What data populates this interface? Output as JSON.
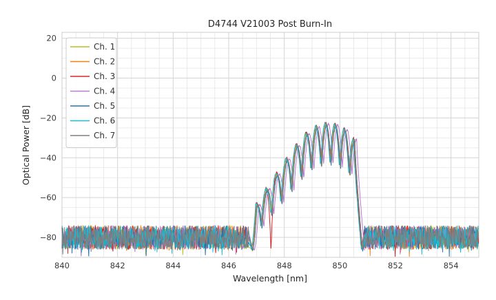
{
  "figure": {
    "title": "D4744 V21003 Post Burn-In",
    "xlabel": "Wavelength [nm]",
    "ylabel": "Optical Power [dB]"
  },
  "chart_data": {
    "type": "line",
    "title": "D4744 V21003 Post Burn-In",
    "xlabel": "Wavelength [nm]",
    "ylabel": "Optical Power [dB]",
    "xlim": [
      840,
      855
    ],
    "ylim": [
      -90,
      23
    ],
    "xticks": [
      840,
      842,
      844,
      846,
      848,
      850,
      852,
      854
    ],
    "yticks": [
      20,
      0,
      -20,
      -40,
      -60,
      -80
    ],
    "minor_grid_step_x_nm": 0.5,
    "minor_grid_step_y_db": 5,
    "grid": true,
    "legend_position": "upper left",
    "series": [
      {
        "name": "Ch. 1",
        "color": "#bcbd22",
        "x_offset_nm": 0.0,
        "y_offset_db": 0.0,
        "seed": 101
      },
      {
        "name": "Ch. 2",
        "color": "#ff7f0e",
        "x_offset_nm": 0.012,
        "y_offset_db": -0.6,
        "seed": 202
      },
      {
        "name": "Ch. 3",
        "color": "#d62728",
        "x_offset_nm": -0.018,
        "y_offset_db": 0.8,
        "seed": 303,
        "deep_notch": true
      },
      {
        "name": "Ch. 4",
        "color": "#bb79cf",
        "x_offset_nm": 0.085,
        "y_offset_db": 0.0,
        "seed": 404
      },
      {
        "name": "Ch. 5",
        "color": "#1f77b4",
        "x_offset_nm": 0.02,
        "y_offset_db": -0.8,
        "seed": 505
      },
      {
        "name": "Ch. 6",
        "color": "#17becf",
        "x_offset_nm": -0.03,
        "y_offset_db": 0.4,
        "seed": 606
      },
      {
        "name": "Ch. 7",
        "color": "#7f7f7f",
        "x_offset_nm": 0.015,
        "y_offset_db": -0.2,
        "seed": 707
      }
    ],
    "noise_floor": {
      "regions_nm": [
        [
          840.0,
          846.72
        ],
        [
          850.88,
          855.0
        ]
      ],
      "mean_db": -80,
      "peak_to_peak_db": 12,
      "spike_depth_db": 5,
      "sample_step_nm": 0.015
    },
    "signal": {
      "fringe_peaks_nm": [
        847.0,
        847.36,
        847.72,
        848.08,
        848.44,
        848.8,
        849.16,
        849.5,
        849.84,
        850.18,
        850.52
      ],
      "fringe_peaks_db": [
        -64,
        -56,
        -48.5,
        -41,
        -34,
        -28,
        -24.5,
        -23,
        -23.5,
        -26,
        -31
      ],
      "fringe_notches_db": [
        -75,
        -69,
        -63,
        -57,
        -51,
        -46.5,
        -44,
        -43.5,
        -45,
        -49
      ],
      "deep_notch_db": -88,
      "deep_notch_index": 1,
      "leading_edge_nm": 846.84,
      "trailing_edge_nm": 850.8,
      "edge_floor_db": -86,
      "sample_step_nm": 0.008
    }
  }
}
